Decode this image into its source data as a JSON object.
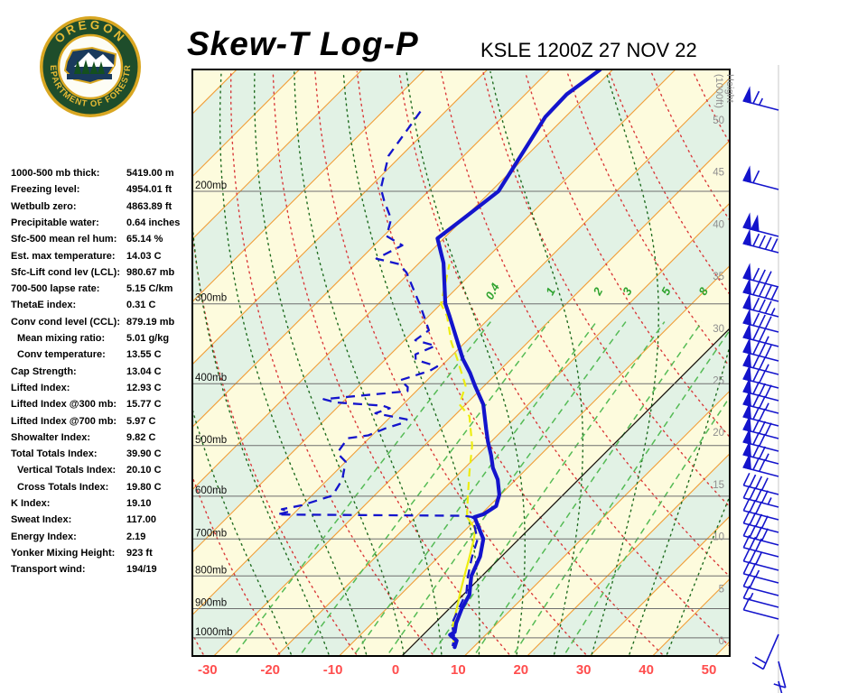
{
  "header": {
    "title": "Skew-T Log-P",
    "station_line": "KSLE 1200Z 27 NOV 22"
  },
  "logo": {
    "org_top": "OREGON",
    "org_bottom": "DEPARTMENT OF FORESTRY"
  },
  "indices": [
    {
      "label": "1000-500 mb thick:",
      "value": "5419.00 m",
      "indent": false
    },
    {
      "label": "Freezing level:",
      "value": "4954.01 ft",
      "indent": false
    },
    {
      "label": "Wetbulb zero:",
      "value": "4863.89 ft",
      "indent": false
    },
    {
      "label": "Precipitable water:",
      "value": "0.64 inches",
      "indent": false
    },
    {
      "label": "Sfc-500 mean rel hum:",
      "value": "65.14 %",
      "indent": false
    },
    {
      "label": "Est. max temperature:",
      "value": "14.03 C",
      "indent": false
    },
    {
      "label": "Sfc-Lift cond lev (LCL):",
      "value": "980.67 mb",
      "indent": false
    },
    {
      "label": "700-500 lapse rate:",
      "value": "5.15 C/km",
      "indent": false
    },
    {
      "label": "ThetaE index:",
      "value": "0.31 C",
      "indent": false
    },
    {
      "label": "Conv cond level (CCL):",
      "value": "879.19 mb",
      "indent": false
    },
    {
      "label": "Mean mixing ratio:",
      "value": "5.01 g/kg",
      "indent": true
    },
    {
      "label": "Conv temperature:",
      "value": "13.55 C",
      "indent": true
    },
    {
      "label": "Cap Strength:",
      "value": "13.04 C",
      "indent": false
    },
    {
      "label": "Lifted Index:",
      "value": "12.93 C",
      "indent": false
    },
    {
      "label": "Lifted Index @300 mb:",
      "value": "15.77 C",
      "indent": false
    },
    {
      "label": "Lifted Index @700 mb:",
      "value": "5.97 C",
      "indent": false
    },
    {
      "label": "Showalter Index:",
      "value": "9.82 C",
      "indent": false
    },
    {
      "label": "Total Totals Index:",
      "value": "39.90 C",
      "indent": false
    },
    {
      "label": "Vertical Totals Index:",
      "value": "20.10 C",
      "indent": true
    },
    {
      "label": "Cross Totals Index:",
      "value": "19.80 C",
      "indent": true
    },
    {
      "label": "K Index:",
      "value": "19.10",
      "indent": false
    },
    {
      "label": "Sweat Index:",
      "value": "117.00",
      "indent": false
    },
    {
      "label": "Energy Index:",
      "value": "2.19",
      "indent": false
    },
    {
      "label": "Yonker Mixing Height:",
      "value": "923 ft",
      "indent": false
    },
    {
      "label": "Transport wind:",
      "value": "194/19",
      "indent": false
    }
  ],
  "chart_data": {
    "type": "skewt-log-p",
    "title": "Skew-T Log-P",
    "station": "KSLE",
    "valid": "1200Z 27 NOV 22",
    "pressure_levels_mb": [
      200,
      300,
      400,
      500,
      600,
      700,
      800,
      900,
      1000
    ],
    "pressure_label_suffix": "mb",
    "temp_ticks_c": [
      -30,
      -20,
      -10,
      0,
      10,
      20,
      30,
      40,
      50
    ],
    "height_axis": {
      "label_line1": "Height",
      "label_line2": "(1000ft)",
      "ticks_kft": [
        50,
        45,
        40,
        35,
        30,
        25,
        20,
        15,
        10,
        5,
        0
      ]
    },
    "mixing_ratio_lines_gkg": [
      0.4,
      1,
      2,
      3,
      5,
      8,
      12,
      20
    ],
    "mixing_ratio_labels": [
      "0.4",
      "1",
      "2",
      "3",
      "5",
      "8"
    ],
    "isotherm_step_c": 10,
    "dry_adiabat_step_c": 12,
    "moist_adiabat_step_c": 6,
    "series": {
      "temperature_p_t": [
        [
          129,
          -62
        ],
        [
          141,
          -63.4
        ],
        [
          153,
          -63.2
        ],
        [
          175,
          -61
        ],
        [
          200,
          -58.8
        ],
        [
          220,
          -60
        ],
        [
          237,
          -61
        ],
        [
          259,
          -56.1
        ],
        [
          300,
          -49.3
        ],
        [
          314,
          -46.6
        ],
        [
          344,
          -41.3
        ],
        [
          366,
          -37.7
        ],
        [
          385,
          -34.3
        ],
        [
          403,
          -31.5
        ],
        [
          431,
          -27.2
        ],
        [
          471,
          -22.8
        ],
        [
          493,
          -20.5
        ],
        [
          518,
          -17.8
        ],
        [
          542,
          -15.5
        ],
        [
          565,
          -12.9
        ],
        [
          597,
          -10.2
        ],
        [
          622,
          -8.9
        ],
        [
          640,
          -9.6
        ],
        [
          647,
          -10.6
        ],
        [
          700,
          -5.7
        ],
        [
          746,
          -3.4
        ],
        [
          800,
          -1.7
        ],
        [
          829,
          -0.3
        ],
        [
          856,
          1.0
        ],
        [
          900,
          2.0
        ],
        [
          948,
          3.4
        ],
        [
          979,
          4.6
        ],
        [
          989,
          4.3
        ],
        [
          1010,
          6.3
        ],
        [
          1034,
          7.0
        ]
      ],
      "dewpoint_p_td": [
        [
          150,
          -84
        ],
        [
          176,
          -82
        ],
        [
          198,
          -78
        ],
        [
          207,
          -75.5
        ],
        [
          221,
          -71.5
        ],
        [
          235,
          -69.5
        ],
        [
          243,
          -65.5
        ],
        [
          255,
          -67.5
        ],
        [
          260,
          -63
        ],
        [
          268,
          -60.5
        ],
        [
          302,
          -53
        ],
        [
          330,
          -47.7
        ],
        [
          342,
          -48.3
        ],
        [
          349,
          -44.2
        ],
        [
          360,
          -46
        ],
        [
          367,
          -45.1
        ],
        [
          376,
          -40.6
        ],
        [
          382,
          -41.1
        ],
        [
          395,
          -44.3
        ],
        [
          405,
          -42
        ],
        [
          411,
          -41.4
        ],
        [
          423,
          -53.5
        ],
        [
          428,
          -51
        ],
        [
          433,
          -43
        ],
        [
          437,
          -41.5
        ],
        [
          445,
          -43
        ],
        [
          455,
          -37
        ],
        [
          460,
          -36.9
        ],
        [
          470,
          -39
        ],
        [
          482,
          -40.6
        ],
        [
          487,
          -43.4
        ],
        [
          507,
          -42.9
        ],
        [
          515,
          -42.5
        ],
        [
          530,
          -40
        ],
        [
          565,
          -37.7
        ],
        [
          578,
          -37.3
        ],
        [
          599,
          -36.7
        ],
        [
          620,
          -40
        ],
        [
          629,
          -42.6
        ],
        [
          634,
          -41
        ],
        [
          641,
          -42.5
        ],
        [
          644,
          -12.5
        ],
        [
          647,
          -10.9
        ],
        [
          684,
          -7.9
        ],
        [
          700,
          -6.6
        ],
        [
          750,
          -4.5
        ],
        [
          803,
          -2.1
        ],
        [
          850,
          0.2
        ],
        [
          900,
          1.5
        ],
        [
          950,
          2.8
        ],
        [
          1000,
          5.5
        ],
        [
          1030,
          6.5
        ]
      ],
      "parcel_solid_p_t": [
        [
          1030,
          6.8
        ],
        [
          1000,
          5.3
        ],
        [
          950,
          3.0
        ],
        [
          900,
          1.2
        ],
        [
          850,
          -0.8
        ],
        [
          800,
          -2.8
        ],
        [
          750,
          -4.9
        ],
        [
          700,
          -7.2
        ],
        [
          675,
          -8.6
        ],
        [
          647,
          -11.8
        ]
      ],
      "parcel_dashed_p_t": [
        [
          647,
          -11.8
        ],
        [
          600,
          -15.0
        ],
        [
          550,
          -18.6
        ],
        [
          500,
          -22.4
        ],
        [
          450,
          -27.5
        ],
        [
          431,
          -31.0
        ],
        [
          403,
          -33.0
        ],
        [
          366,
          -38.6
        ],
        [
          344,
          -42.3
        ],
        [
          314,
          -47.0
        ],
        [
          300,
          -50.0
        ],
        [
          260,
          -55.0
        ]
      ]
    },
    "winds": [
      {
        "y": 122,
        "dir": "up",
        "p": 1,
        "f": 1,
        "h": 1
      },
      {
        "y": 210,
        "dir": "up",
        "p": 1,
        "f": 1,
        "h": 0
      },
      {
        "y": 262,
        "dir": "up",
        "p": 2,
        "f": 0,
        "h": 0
      },
      {
        "y": 280,
        "dir": "up",
        "p": 1,
        "f": 4,
        "h": 0
      },
      {
        "y": 318,
        "dir": "up",
        "p": 1,
        "f": 3,
        "h": 0
      },
      {
        "y": 334,
        "dir": "up",
        "p": 1,
        "f": 4,
        "h": 0
      },
      {
        "y": 351,
        "dir": "up",
        "p": 1,
        "f": 3,
        "h": 1
      },
      {
        "y": 368,
        "dir": "up",
        "p": 1,
        "f": 3,
        "h": 0
      },
      {
        "y": 384,
        "dir": "up",
        "p": 1,
        "f": 2,
        "h": 1
      },
      {
        "y": 400,
        "dir": "up",
        "p": 1,
        "f": 3,
        "h": 0
      },
      {
        "y": 415,
        "dir": "up",
        "p": 1,
        "f": 2,
        "h": 1
      },
      {
        "y": 430,
        "dir": "up",
        "p": 1,
        "f": 2,
        "h": 0
      },
      {
        "y": 444,
        "dir": "up",
        "p": 1,
        "f": 3,
        "h": 0
      },
      {
        "y": 458,
        "dir": "up",
        "p": 1,
        "f": 2,
        "h": 1
      },
      {
        "y": 472,
        "dir": "up",
        "p": 1,
        "f": 2,
        "h": 0
      },
      {
        "y": 486,
        "dir": "up",
        "p": 1,
        "f": 3,
        "h": 0
      },
      {
        "y": 500,
        "dir": "up",
        "p": 1,
        "f": 2,
        "h": 0
      },
      {
        "y": 514,
        "dir": "up",
        "p": 1,
        "f": 2,
        "h": 1
      },
      {
        "y": 528,
        "dir": "up",
        "p": 1,
        "f": 2,
        "h": 0
      },
      {
        "y": 548,
        "dir": "up",
        "p": 0,
        "f": 4,
        "h": 0
      },
      {
        "y": 562,
        "dir": "up",
        "p": 0,
        "f": 4,
        "h": 1
      },
      {
        "y": 576,
        "dir": "up",
        "p": 0,
        "f": 3,
        "h": 0
      },
      {
        "y": 590,
        "dir": "up",
        "p": 0,
        "f": 4,
        "h": 0
      },
      {
        "y": 604,
        "dir": "up",
        "p": 0,
        "f": 4,
        "h": 0
      },
      {
        "y": 617,
        "dir": "up",
        "p": 0,
        "f": 3,
        "h": 0
      },
      {
        "y": 632,
        "dir": "up",
        "p": 0,
        "f": 3,
        "h": 0
      },
      {
        "y": 646,
        "dir": "up",
        "p": 0,
        "f": 2,
        "h": 1
      },
      {
        "y": 660,
        "dir": "up",
        "p": 0,
        "f": 2,
        "h": 0
      },
      {
        "y": 673,
        "dir": "up",
        "p": 0,
        "f": 1,
        "h": 1
      },
      {
        "y": 686,
        "dir": "up",
        "p": 0,
        "f": 1,
        "h": 0
      },
      {
        "y": 703,
        "dir": "dl",
        "p": 0,
        "f": 2,
        "h": 0
      },
      {
        "y": 733,
        "dir": "dr",
        "p": 0,
        "f": 1,
        "h": 0
      },
      {
        "y": 755,
        "dir": "dr",
        "p": 0,
        "f": 0,
        "h": 1
      }
    ]
  },
  "colors": {
    "band_cream": "#FDFBDD",
    "band_green": "#E2F2E5",
    "isotherm": "#F19E38",
    "dry_adiabat": "#D93A3A",
    "moist_adiabat": "#1E6B1E",
    "mixing_ratio": "#55BB55",
    "mixing_label": "#2FA32F",
    "pressure_line": "#6E6E6E",
    "zero_line": "#111111",
    "profile_blue": "#1414CC",
    "parcel_yellow": "#EDED12",
    "axis_red": "#FF4D4D",
    "height_gray": "#8E8E8E",
    "barb_blue": "#1414CC",
    "seal_gold": "#D9A722",
    "seal_green": "#1E4D2B",
    "seal_navy": "#1A3A5C"
  }
}
